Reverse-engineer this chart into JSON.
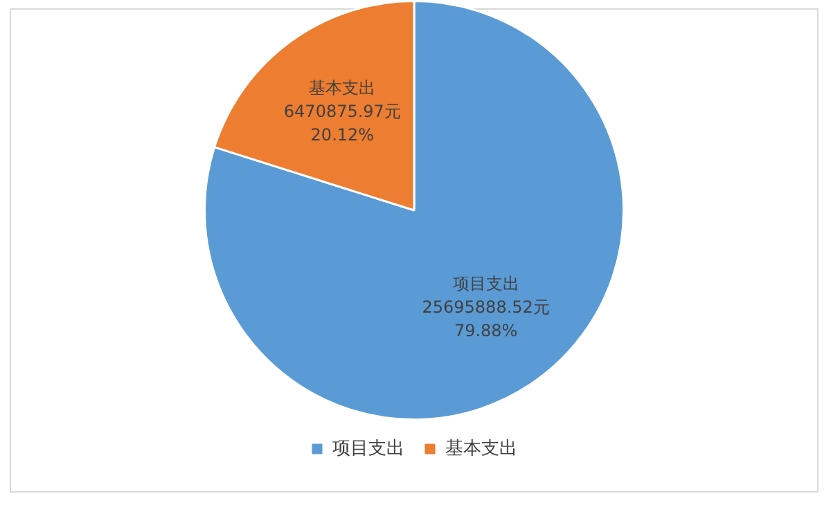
{
  "chart_data": {
    "type": "pie",
    "categories": [
      "项目支出",
      "基本支出"
    ],
    "values": [
      25695888.52,
      6470875.97
    ],
    "colors": [
      "#5b9bd5",
      "#ed7d31"
    ],
    "value_labels": [
      "25695888.52元\n79.88%",
      "6470875.97元\n20.12%"
    ],
    "legend": "bottom"
  }
}
